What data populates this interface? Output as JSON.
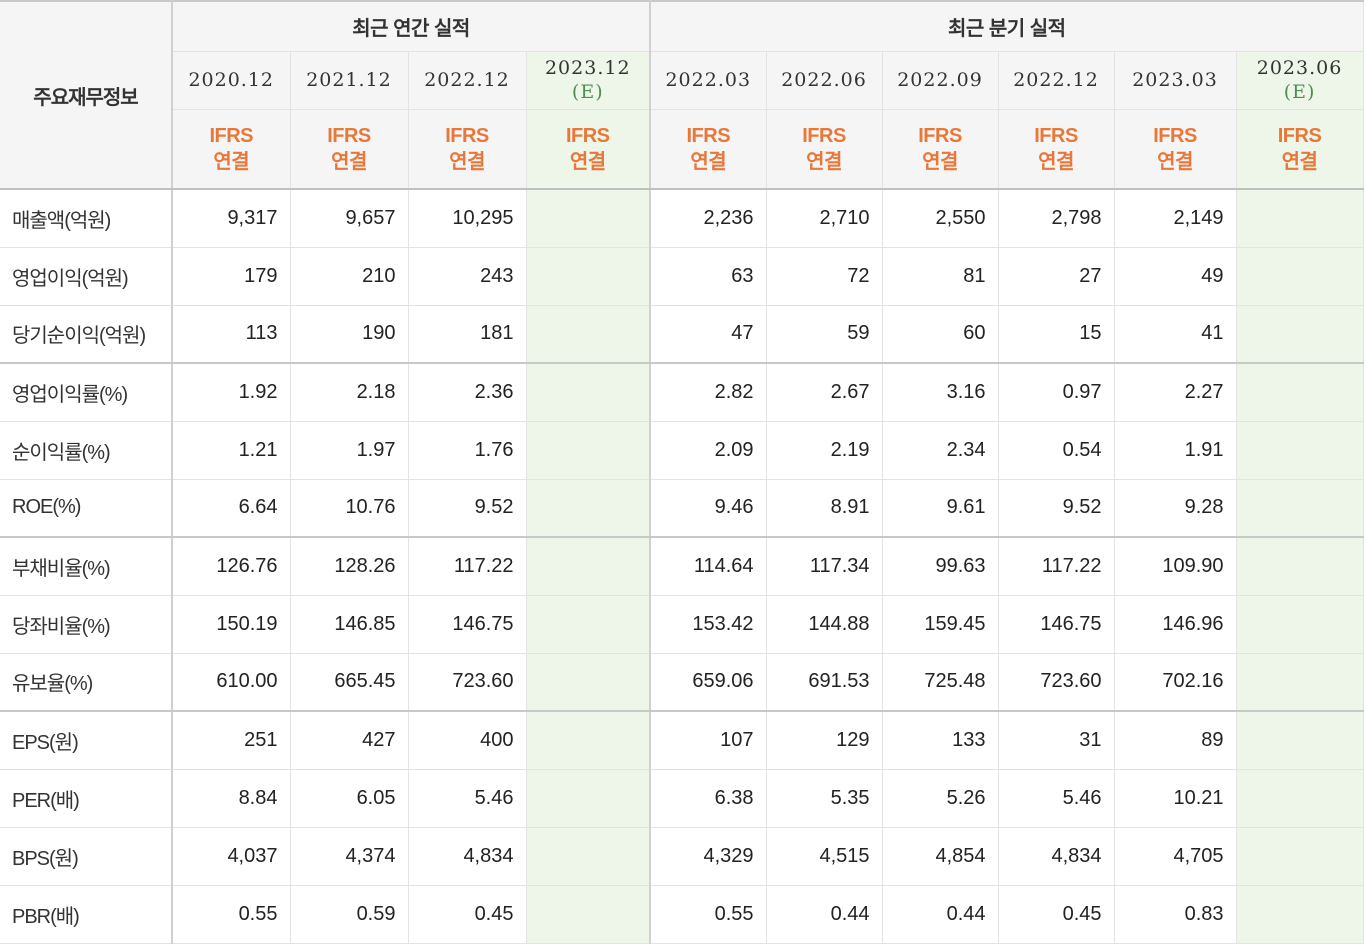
{
  "header": {
    "corner": "주요재무정보",
    "annual_group": "최근 연간 실적",
    "quarter_group": "최근 분기 실적",
    "ifrs_line1": "IFRS",
    "ifrs_line2": "연결",
    "annual_dates": [
      {
        "date": "2020.12",
        "est": ""
      },
      {
        "date": "2021.12",
        "est": ""
      },
      {
        "date": "2022.12",
        "est": ""
      },
      {
        "date": "2023.12",
        "est": "(E)"
      }
    ],
    "quarter_dates": [
      {
        "date": "2022.03",
        "est": ""
      },
      {
        "date": "2022.06",
        "est": ""
      },
      {
        "date": "2022.09",
        "est": ""
      },
      {
        "date": "2022.12",
        "est": ""
      },
      {
        "date": "2023.03",
        "est": ""
      },
      {
        "date": "2023.06",
        "est": "(E)"
      }
    ]
  },
  "rows": [
    {
      "label": "매출액(억원)",
      "annual": [
        "9,317",
        "9,657",
        "10,295",
        ""
      ],
      "quarter": [
        "2,236",
        "2,710",
        "2,550",
        "2,798",
        "2,149",
        ""
      ]
    },
    {
      "label": "영업이익(억원)",
      "annual": [
        "179",
        "210",
        "243",
        ""
      ],
      "quarter": [
        "63",
        "72",
        "81",
        "27",
        "49",
        ""
      ]
    },
    {
      "label": "당기순이익(억원)",
      "annual": [
        "113",
        "190",
        "181",
        ""
      ],
      "quarter": [
        "47",
        "59",
        "60",
        "15",
        "41",
        ""
      ]
    },
    {
      "label": "영업이익률(%)",
      "annual": [
        "1.92",
        "2.18",
        "2.36",
        ""
      ],
      "quarter": [
        "2.82",
        "2.67",
        "3.16",
        "0.97",
        "2.27",
        ""
      ]
    },
    {
      "label": "순이익률(%)",
      "annual": [
        "1.21",
        "1.97",
        "1.76",
        ""
      ],
      "quarter": [
        "2.09",
        "2.19",
        "2.34",
        "0.54",
        "1.91",
        ""
      ]
    },
    {
      "label": "ROE(%)",
      "annual": [
        "6.64",
        "10.76",
        "9.52",
        ""
      ],
      "quarter": [
        "9.46",
        "8.91",
        "9.61",
        "9.52",
        "9.28",
        ""
      ]
    },
    {
      "label": "부채비율(%)",
      "annual": [
        "126.76",
        "128.26",
        "117.22",
        ""
      ],
      "quarter": [
        "114.64",
        "117.34",
        "99.63",
        "117.22",
        "109.90",
        ""
      ]
    },
    {
      "label": "당좌비율(%)",
      "annual": [
        "150.19",
        "146.85",
        "146.75",
        ""
      ],
      "quarter": [
        "153.42",
        "144.88",
        "159.45",
        "146.75",
        "146.96",
        ""
      ]
    },
    {
      "label": "유보율(%)",
      "annual": [
        "610.00",
        "665.45",
        "723.60",
        ""
      ],
      "quarter": [
        "659.06",
        "691.53",
        "725.48",
        "723.60",
        "702.16",
        ""
      ]
    },
    {
      "label": "EPS(원)",
      "annual": [
        "251",
        "427",
        "400",
        ""
      ],
      "quarter": [
        "107",
        "129",
        "133",
        "31",
        "89",
        ""
      ]
    },
    {
      "label": "PER(배)",
      "annual": [
        "8.84",
        "6.05",
        "5.46",
        ""
      ],
      "quarter": [
        "6.38",
        "5.35",
        "5.26",
        "5.46",
        "10.21",
        ""
      ]
    },
    {
      "label": "BPS(원)",
      "annual": [
        "4,037",
        "4,374",
        "4,834",
        ""
      ],
      "quarter": [
        "4,329",
        "4,515",
        "4,854",
        "4,834",
        "4,705",
        ""
      ]
    },
    {
      "label": "PBR(배)",
      "annual": [
        "0.55",
        "0.59",
        "0.45",
        ""
      ],
      "quarter": [
        "0.55",
        "0.44",
        "0.44",
        "0.45",
        "0.83",
        ""
      ]
    }
  ]
}
